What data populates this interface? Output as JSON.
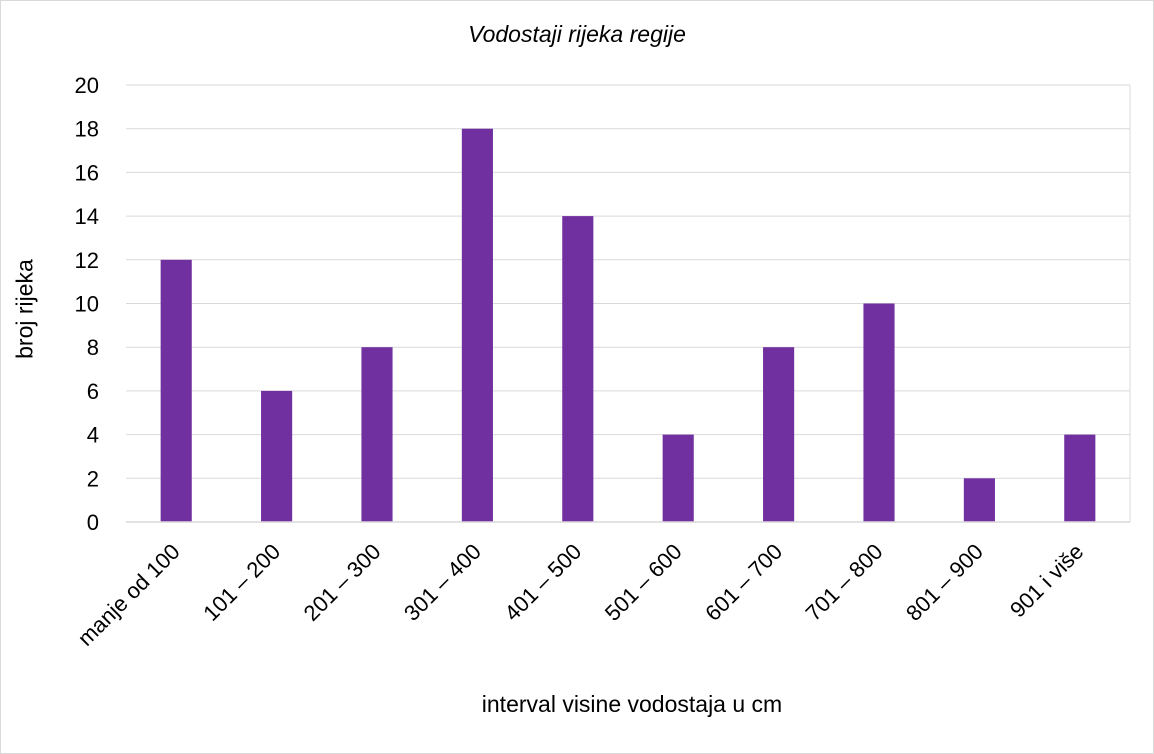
{
  "chart_data": {
    "type": "bar",
    "title": "Vodostaji rijeka regije",
    "xlabel": "interval visine vodostaja u cm",
    "ylabel": "broj rijeka",
    "categories": [
      "manje od 100",
      "101 – 200",
      "201 – 300",
      "301 – 400",
      "401 – 500",
      "501 – 600",
      "601 – 700",
      "701 – 800",
      "801 – 900",
      "901  i više"
    ],
    "values": [
      12,
      6,
      8,
      18,
      14,
      4,
      8,
      10,
      2,
      4
    ],
    "ylim": [
      0,
      20
    ],
    "yticks": [
      "0",
      "2",
      "4",
      "6",
      "8",
      "10",
      "12",
      "14",
      "16",
      "18",
      "20"
    ],
    "grid": true,
    "bar_color": "#7030a0",
    "grid_color": "#d9d9d9"
  }
}
